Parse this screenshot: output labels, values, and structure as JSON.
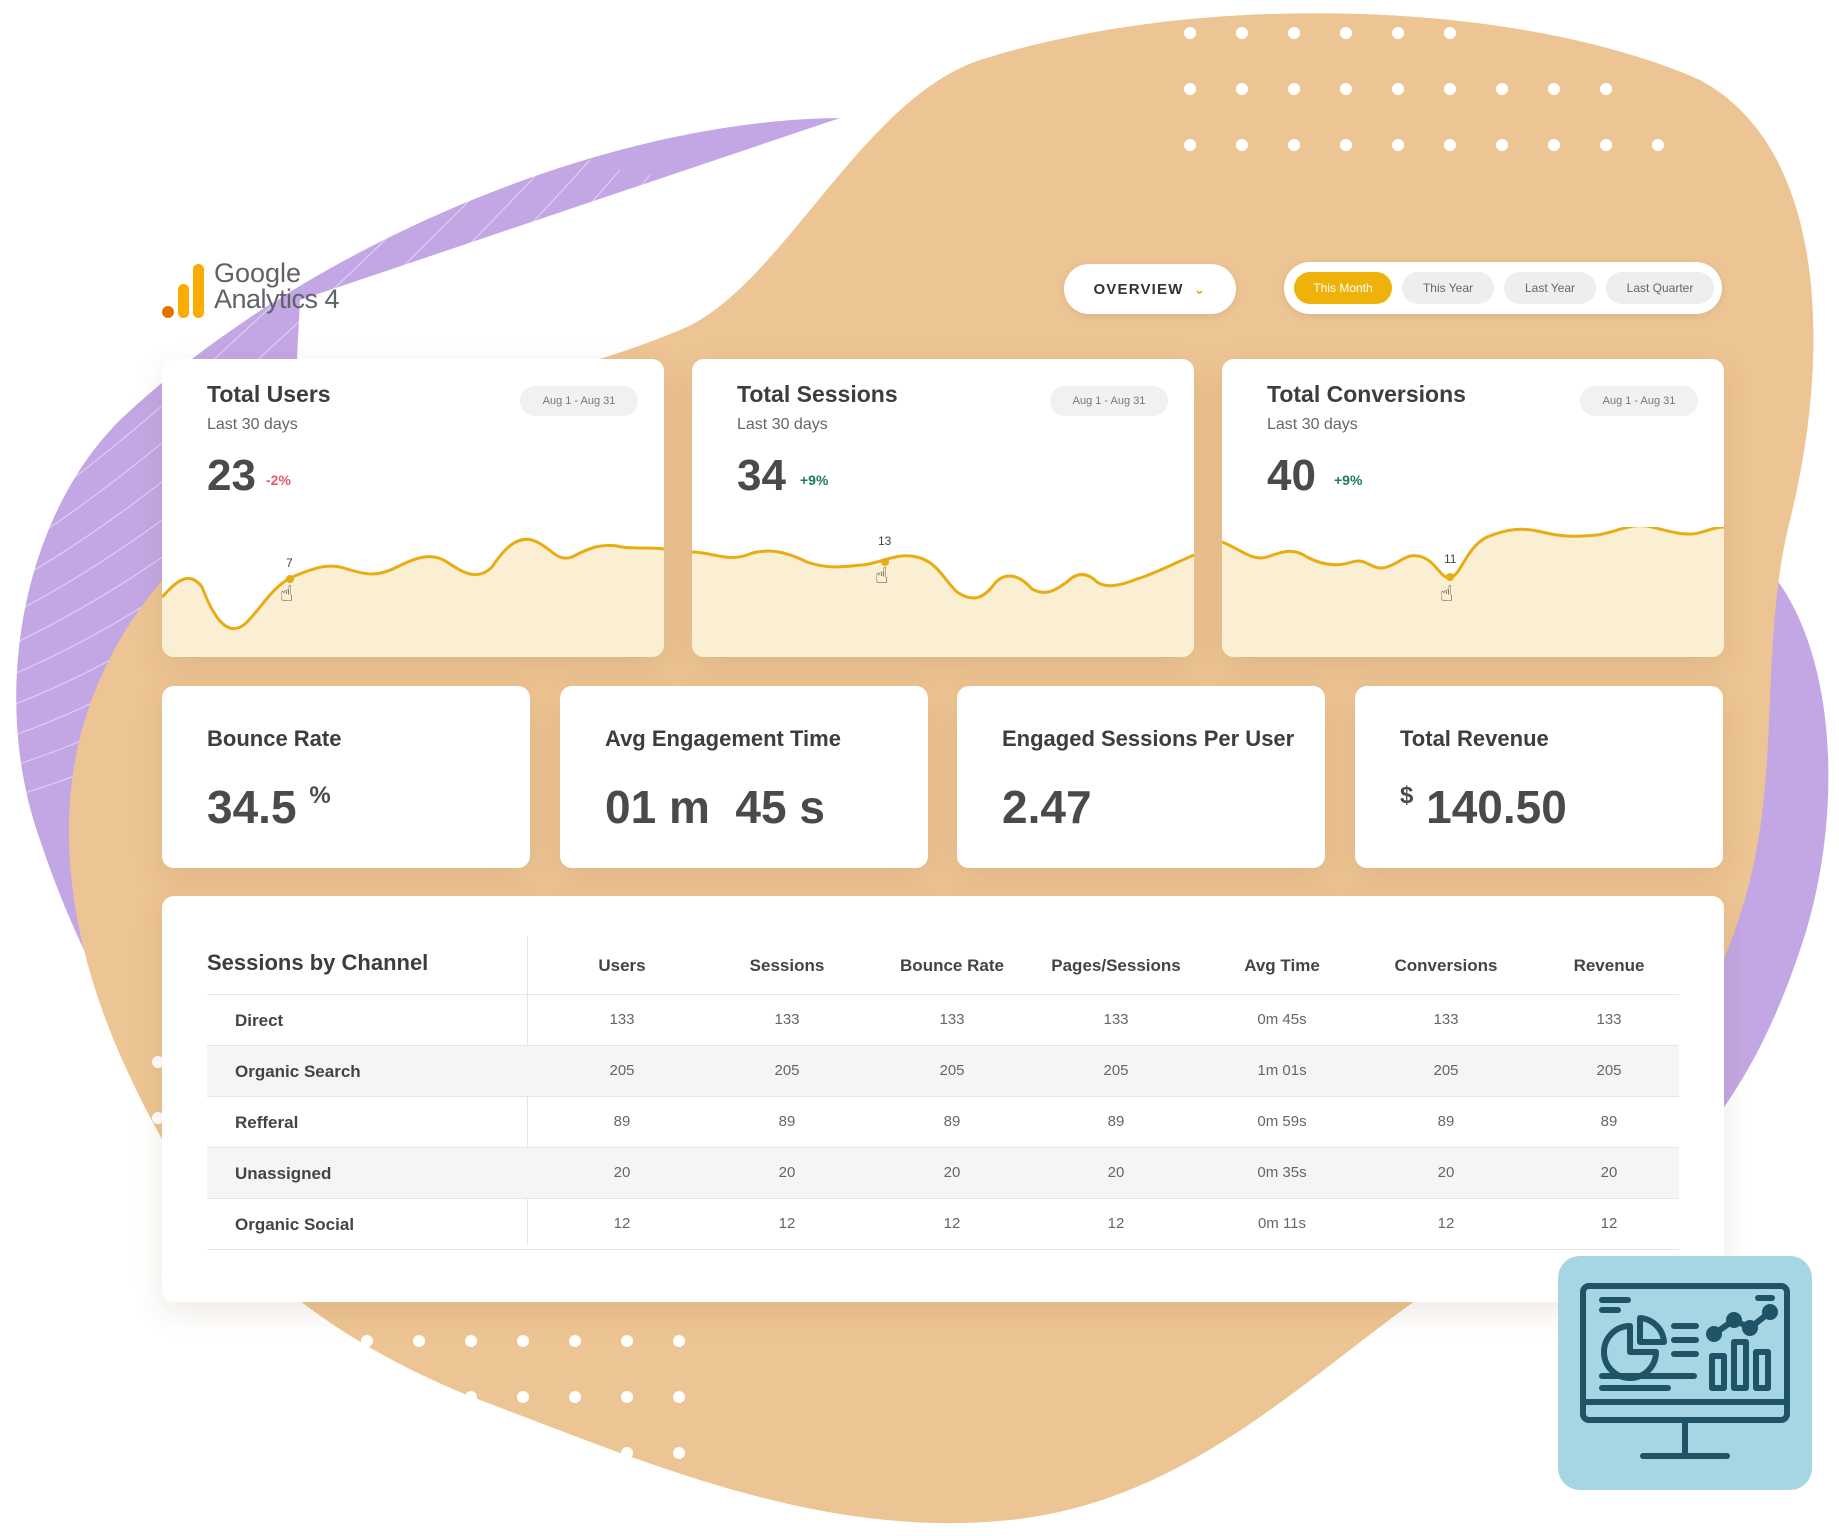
{
  "logo": {
    "line1": "Google",
    "line2": "Analytics 4",
    "colors": [
      "#f9ab00",
      "#e37400"
    ]
  },
  "overview": {
    "label": "OVERVIEW",
    "icon": "chevron-down-icon"
  },
  "periods": [
    {
      "label": "This Month",
      "active": true
    },
    {
      "label": "This Year",
      "active": false
    },
    {
      "label": "Last Year",
      "active": false
    },
    {
      "label": "Last Quarter",
      "active": false
    }
  ],
  "charts": [
    {
      "title": "Total Users",
      "subtitle": "Last 30 days",
      "value": "23",
      "change": "-2%",
      "change_type": "negative",
      "range": "Aug 1 - Aug 31",
      "marker": "7"
    },
    {
      "title": "Total Sessions",
      "subtitle": "Last 30 days",
      "value": "34",
      "change": "+9%",
      "change_type": "positive",
      "range": "Aug 1 - Aug 31",
      "marker": "13"
    },
    {
      "title": "Total Conversions",
      "subtitle": "Last 30 days",
      "value": "40",
      "change": "+9%",
      "change_type": "positive",
      "range": "Aug 1 - Aug 31",
      "marker": "11"
    }
  ],
  "metrics": [
    {
      "title": "Bounce Rate",
      "value": "34.5",
      "suffix": "%"
    },
    {
      "title": "Avg Engagement Time",
      "value": "01 m  45 s"
    },
    {
      "title": "Engaged Sessions Per User",
      "value": "2.47"
    },
    {
      "title": "Total Revenue",
      "prefix": "$",
      "value": "140.50"
    }
  ],
  "table": {
    "title": "Sessions by Channel",
    "columns": [
      "Users",
      "Sessions",
      "Bounce Rate",
      "Pages/Sessions",
      "Avg Time",
      "Conversions",
      "Revenue"
    ],
    "rows": [
      {
        "channel": "Direct",
        "cells": [
          "133",
          "133",
          "133",
          "133",
          "0m 45s",
          "133",
          "133"
        ]
      },
      {
        "channel": "Organic Search",
        "cells": [
          "205",
          "205",
          "205",
          "205",
          "1m 01s",
          "205",
          "205"
        ]
      },
      {
        "channel": "Refferal",
        "cells": [
          "89",
          "89",
          "89",
          "89",
          "0m 59s",
          "89",
          "89"
        ]
      },
      {
        "channel": "Unassigned",
        "cells": [
          "20",
          "20",
          "20",
          "20",
          "0m 35s",
          "20",
          "20"
        ]
      },
      {
        "channel": "Organic Social",
        "cells": [
          "12",
          "12",
          "12",
          "12",
          "0m 11s",
          "12",
          "12"
        ]
      }
    ]
  },
  "colors": {
    "accent": "#efb20a",
    "blob_orange": "#edc493",
    "blob_purple": "#c3a7e4",
    "chart_fill": "#faefd2",
    "badge": "#a6d5e3",
    "badge_icon": "#1f5466"
  },
  "badge_icon": "dashboard-monitor-icon"
}
